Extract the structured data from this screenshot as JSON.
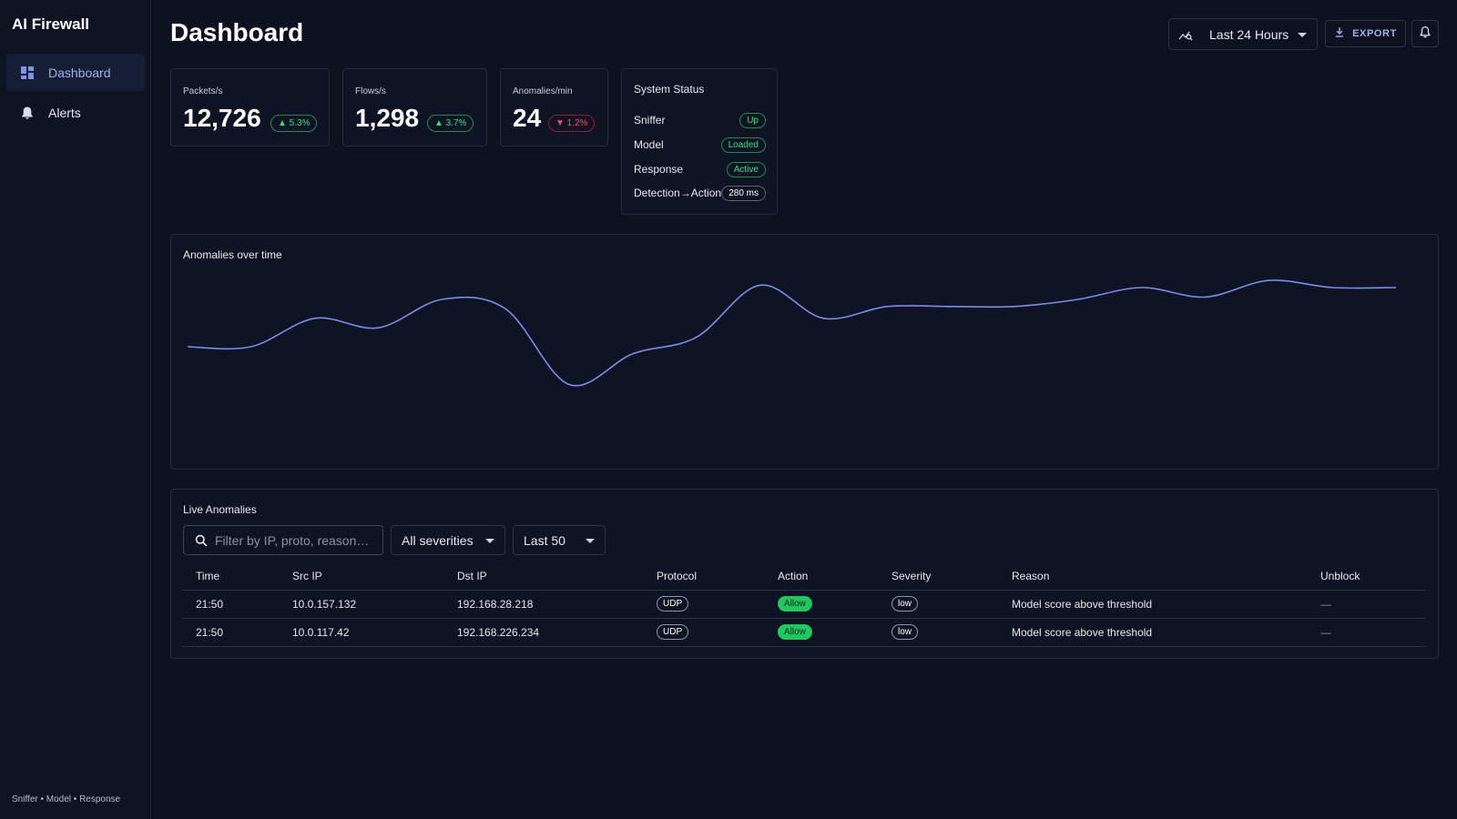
{
  "app": {
    "title": "AI Firewall"
  },
  "sidebar": {
    "items": [
      {
        "label": "Dashboard",
        "icon": "dashboard-grid-icon",
        "active": true
      },
      {
        "label": "Alerts",
        "icon": "bell-icon",
        "active": false
      }
    ],
    "footer": "Sniffer • Model • Response"
  },
  "header": {
    "title": "Dashboard",
    "range_label": "Last 24 Hours",
    "export_label": "EXPORT"
  },
  "kpis": [
    {
      "label": "Packets/s",
      "value": "12,726",
      "delta": "▲ 5.3%",
      "trend": "up"
    },
    {
      "label": "Flows/s",
      "value": "1,298",
      "delta": "▲ 3.7%",
      "trend": "up"
    },
    {
      "label": "Anomalies/min",
      "value": "24",
      "delta": "▼ 1.2%",
      "trend": "down"
    }
  ],
  "system_status": {
    "title": "System Status",
    "rows": [
      {
        "label": "Sniffer",
        "value": "Up"
      },
      {
        "label": "Model",
        "value": "Loaded"
      },
      {
        "label": "Response",
        "value": "Active"
      },
      {
        "label": "Detection→Action",
        "value": "280 ms"
      }
    ]
  },
  "chart": {
    "title": "Anomalies over time"
  },
  "chart_data": {
    "type": "line",
    "title": "Anomalies over time",
    "xlabel": "",
    "ylabel": "",
    "grid": false,
    "x": [
      0,
      1,
      2,
      3,
      4,
      5,
      6,
      7,
      8,
      9,
      10,
      11,
      12,
      13,
      14,
      15,
      16,
      17,
      18,
      19
    ],
    "series": [
      {
        "values": [
          45,
          45,
          57,
          53,
          65,
          61,
          29,
          42,
          49,
          71,
          57,
          62,
          62,
          62,
          65,
          70,
          66,
          73,
          70,
          70
        ],
        "color": "#7b8ce8"
      }
    ]
  },
  "anomalies": {
    "title": "Live Anomalies",
    "filter_placeholder": "Filter by IP, proto, reason…",
    "severity_filter": "All severities",
    "limit_filter": "Last 50",
    "columns": [
      "Time",
      "Src IP",
      "Dst IP",
      "Protocol",
      "Action",
      "Severity",
      "Reason",
      "Unblock"
    ],
    "rows": [
      {
        "time": "21:50",
        "src": "10.0.157.132",
        "dst": "192.168.28.218",
        "protocol": "UDP",
        "action": "Allow",
        "severity": "low",
        "reason": "Model score above threshold",
        "unblock": "—"
      },
      {
        "time": "21:50",
        "src": "10.0.117.42",
        "dst": "192.168.226.234",
        "protocol": "UDP",
        "action": "Allow",
        "severity": "low",
        "reason": "Model score above threshold",
        "unblock": "—"
      }
    ]
  }
}
